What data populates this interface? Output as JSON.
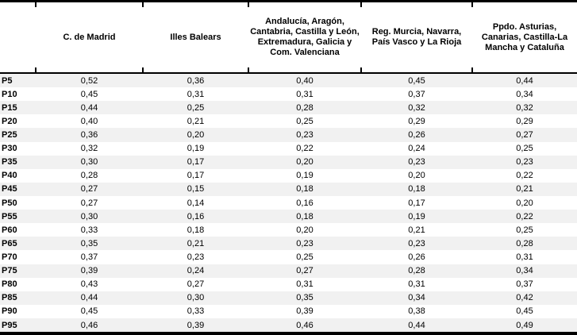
{
  "table": {
    "columns": [
      "",
      "C. de Madrid",
      "Illes Balears",
      "Andalucía, Aragón, Cantabria, Castilla y León, Extremadura, Galicia y Com. Valenciana",
      "Reg. Murcia, Navarra, País Vasco y La Rioja",
      "Ppdo. Asturias, Canarias, Castilla-La Mancha y Cataluña"
    ],
    "rows": [
      {
        "label": "P5",
        "values": [
          "0,52",
          "0,36",
          "0,40",
          "0,45",
          "0,44"
        ]
      },
      {
        "label": "P10",
        "values": [
          "0,45",
          "0,31",
          "0,31",
          "0,37",
          "0,34"
        ]
      },
      {
        "label": "P15",
        "values": [
          "0,44",
          "0,25",
          "0,28",
          "0,32",
          "0,32"
        ]
      },
      {
        "label": "P20",
        "values": [
          "0,40",
          "0,21",
          "0,25",
          "0,29",
          "0,29"
        ]
      },
      {
        "label": "P25",
        "values": [
          "0,36",
          "0,20",
          "0,23",
          "0,26",
          "0,27"
        ]
      },
      {
        "label": "P30",
        "values": [
          "0,32",
          "0,19",
          "0,22",
          "0,24",
          "0,25"
        ]
      },
      {
        "label": "P35",
        "values": [
          "0,30",
          "0,17",
          "0,20",
          "0,23",
          "0,23"
        ]
      },
      {
        "label": "P40",
        "values": [
          "0,28",
          "0,17",
          "0,19",
          "0,20",
          "0,22"
        ]
      },
      {
        "label": "P45",
        "values": [
          "0,27",
          "0,15",
          "0,18",
          "0,18",
          "0,21"
        ]
      },
      {
        "label": "P50",
        "values": [
          "0,27",
          "0,14",
          "0,16",
          "0,17",
          "0,20"
        ]
      },
      {
        "label": "P55",
        "values": [
          "0,30",
          "0,16",
          "0,18",
          "0,19",
          "0,22"
        ]
      },
      {
        "label": "P60",
        "values": [
          "0,33",
          "0,18",
          "0,20",
          "0,21",
          "0,25"
        ]
      },
      {
        "label": "P65",
        "values": [
          "0,35",
          "0,21",
          "0,23",
          "0,23",
          "0,28"
        ]
      },
      {
        "label": "P70",
        "values": [
          "0,37",
          "0,23",
          "0,25",
          "0,26",
          "0,31"
        ]
      },
      {
        "label": "P75",
        "values": [
          "0,39",
          "0,24",
          "0,27",
          "0,28",
          "0,34"
        ]
      },
      {
        "label": "P80",
        "values": [
          "0,43",
          "0,27",
          "0,31",
          "0,31",
          "0,37"
        ]
      },
      {
        "label": "P85",
        "values": [
          "0,44",
          "0,30",
          "0,35",
          "0,34",
          "0,42"
        ]
      },
      {
        "label": "P90",
        "values": [
          "0,45",
          "0,33",
          "0,39",
          "0,38",
          "0,45"
        ]
      },
      {
        "label": "P95",
        "values": [
          "0,46",
          "0,39",
          "0,46",
          "0,44",
          "0,49"
        ]
      }
    ]
  },
  "chart_data": {
    "type": "table",
    "categories": [
      "P5",
      "P10",
      "P15",
      "P20",
      "P25",
      "P30",
      "P35",
      "P40",
      "P45",
      "P50",
      "P55",
      "P60",
      "P65",
      "P70",
      "P75",
      "P80",
      "P85",
      "P90",
      "P95"
    ],
    "series": [
      {
        "name": "C. de Madrid",
        "values": [
          0.52,
          0.45,
          0.44,
          0.4,
          0.36,
          0.32,
          0.3,
          0.28,
          0.27,
          0.27,
          0.3,
          0.33,
          0.35,
          0.37,
          0.39,
          0.43,
          0.44,
          0.45,
          0.46
        ]
      },
      {
        "name": "Illes Balears",
        "values": [
          0.36,
          0.31,
          0.25,
          0.21,
          0.2,
          0.19,
          0.17,
          0.17,
          0.15,
          0.14,
          0.16,
          0.18,
          0.21,
          0.23,
          0.24,
          0.27,
          0.3,
          0.33,
          0.39
        ]
      },
      {
        "name": "Andalucía, Aragón, Cantabria, Castilla y León, Extremadura, Galicia y Com. Valenciana",
        "values": [
          0.4,
          0.31,
          0.28,
          0.25,
          0.23,
          0.22,
          0.2,
          0.19,
          0.18,
          0.16,
          0.18,
          0.2,
          0.23,
          0.25,
          0.27,
          0.31,
          0.35,
          0.39,
          0.46
        ]
      },
      {
        "name": "Reg. Murcia, Navarra, País Vasco y La Rioja",
        "values": [
          0.45,
          0.37,
          0.32,
          0.29,
          0.26,
          0.24,
          0.23,
          0.2,
          0.18,
          0.17,
          0.19,
          0.21,
          0.23,
          0.26,
          0.28,
          0.31,
          0.34,
          0.38,
          0.44
        ]
      },
      {
        "name": "Ppdo. Asturias, Canarias, Castilla-La Mancha y Cataluña",
        "values": [
          0.44,
          0.34,
          0.32,
          0.29,
          0.27,
          0.25,
          0.23,
          0.22,
          0.21,
          0.2,
          0.22,
          0.25,
          0.28,
          0.31,
          0.34,
          0.37,
          0.42,
          0.45,
          0.49
        ]
      }
    ],
    "decimal_separator": ",",
    "row_label_prefix": "P"
  },
  "colors": {
    "background": "#ffffff",
    "stripe": "#f1f1f1",
    "border": "#000000",
    "text": "#000000"
  }
}
